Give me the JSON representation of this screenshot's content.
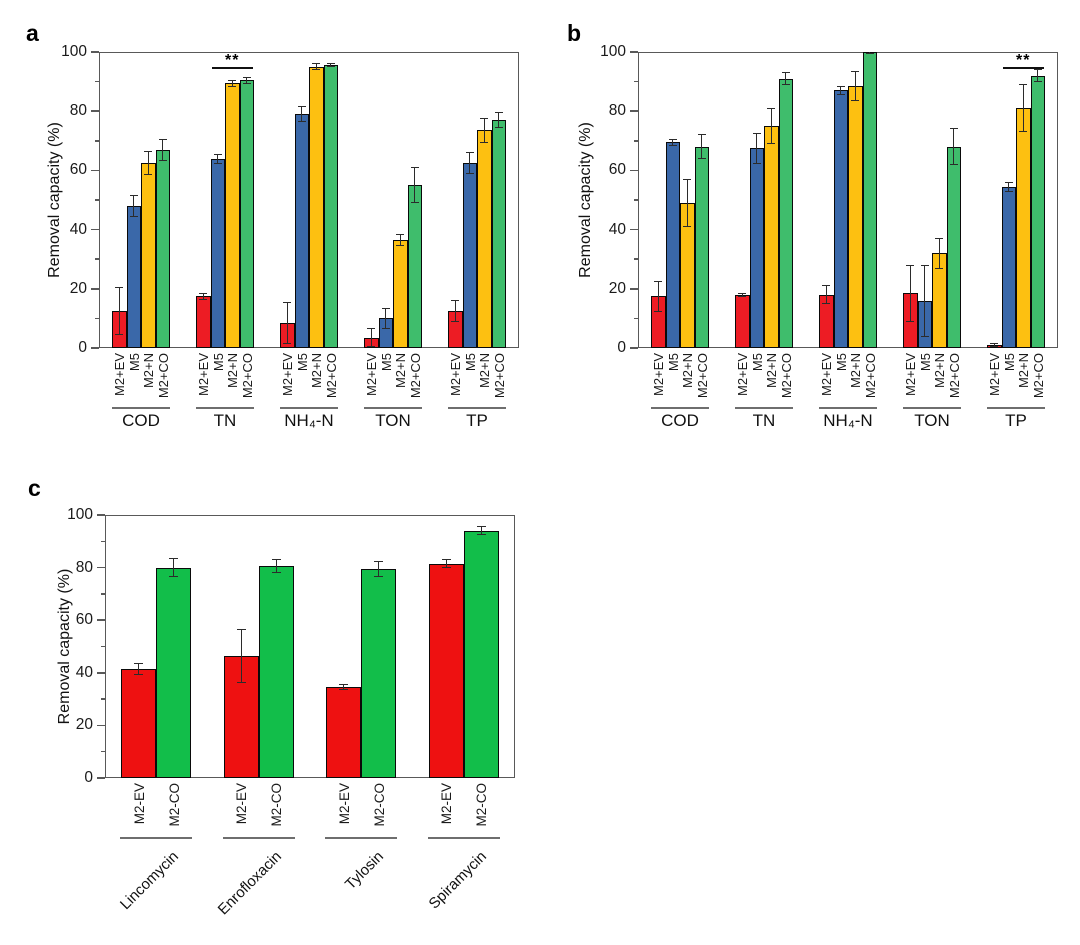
{
  "figure": {
    "background": "#ffffff",
    "axis_color": "#595959",
    "error_bar_color": "#2b2b2b"
  },
  "chart_data": [
    {
      "type": "bar",
      "panel_label": "a",
      "title": "",
      "xlabel": "",
      "ylabel": "Removal capacity (%)",
      "ylim": [
        0,
        100
      ],
      "yticks": [
        0,
        20,
        40,
        60,
        80,
        100
      ],
      "yminorticks": [
        10,
        30,
        50,
        70,
        90
      ],
      "grid": "off",
      "legend": "none",
      "categories": [
        "COD",
        "TN",
        "NH₄-N",
        "TON",
        "TP"
      ],
      "series": [
        {
          "name": "M2+EV",
          "color": "#ED1C24",
          "values": [
            12.5,
            17.5,
            8.5,
            3.5,
            12.5
          ],
          "errors": [
            8,
            1,
            7,
            3,
            3.5
          ]
        },
        {
          "name": "M5",
          "color": "#3A68A9",
          "values": [
            48,
            64,
            79,
            10,
            62.5
          ],
          "errors": [
            3.5,
            1.5,
            2.5,
            3.5,
            3.5
          ]
        },
        {
          "name": "M2+N",
          "color": "#FDC011",
          "values": [
            62.5,
            89.5,
            95,
            36.5,
            73.5
          ],
          "errors": [
            4,
            1,
            1,
            2,
            4
          ]
        },
        {
          "name": "M2+CO",
          "color": "#3FBD6C",
          "values": [
            67,
            90.5,
            95.5,
            55,
            77
          ],
          "errors": [
            3.5,
            1,
            0.5,
            6,
            2.5
          ]
        }
      ],
      "significance": {
        "label": "**",
        "category": "TN",
        "from_series": "M5",
        "to_series": "M2+CO"
      }
    },
    {
      "type": "bar",
      "panel_label": "b",
      "title": "",
      "xlabel": "",
      "ylabel": "Removal capacity (%)",
      "ylim": [
        0,
        100
      ],
      "yticks": [
        0,
        20,
        40,
        60,
        80,
        100
      ],
      "yminorticks": [
        10,
        30,
        50,
        70,
        90
      ],
      "grid": "off",
      "legend": "none",
      "categories": [
        "COD",
        "TN",
        "NH₄-N",
        "TON",
        "TP"
      ],
      "series": [
        {
          "name": "M2+EV",
          "color": "#ED1C24",
          "values": [
            17.5,
            17.8,
            18,
            18.5,
            1
          ],
          "errors": [
            5,
            0.5,
            3,
            9.5,
            0.5
          ]
        },
        {
          "name": "M5",
          "color": "#3A68A9",
          "values": [
            69.5,
            67.5,
            87,
            16,
            54.5
          ],
          "errors": [
            1,
            5,
            1.5,
            12,
            1.5
          ]
        },
        {
          "name": "M2+N",
          "color": "#FDC011",
          "values": [
            49,
            75,
            88.5,
            32,
            81
          ],
          "errors": [
            8,
            6,
            5,
            5,
            8
          ]
        },
        {
          "name": "M2+CO",
          "color": "#3FBD6C",
          "values": [
            68,
            91,
            100,
            68,
            92
          ],
          "errors": [
            4,
            2,
            0.5,
            6,
            2
          ]
        }
      ],
      "significance": {
        "label": "**",
        "category": "TP",
        "from_series": "M5",
        "to_series": "M2+CO"
      }
    },
    {
      "type": "bar",
      "panel_label": "c",
      "title": "",
      "xlabel": "",
      "ylabel": "Removal capacity (%)",
      "ylim": [
        0,
        100
      ],
      "yticks": [
        0,
        20,
        40,
        60,
        80,
        100
      ],
      "yminorticks": [
        10,
        30,
        50,
        70,
        90
      ],
      "grid": "off",
      "legend": "none",
      "categories": [
        "Lincomycin",
        "Enrofloxacin",
        "Tylosin",
        "Spiramycin"
      ],
      "series": [
        {
          "name": "M2-EV",
          "color": "#EE1111",
          "values": [
            41.5,
            46.5,
            34.5,
            81.5
          ],
          "errors": [
            2,
            10,
            1,
            1.5
          ]
        },
        {
          "name": "M2-CO",
          "color": "#12BE4A",
          "values": [
            80,
            80.5,
            79.5,
            94
          ],
          "errors": [
            3.5,
            2.5,
            3,
            1.5
          ]
        }
      ],
      "significance": null
    }
  ]
}
